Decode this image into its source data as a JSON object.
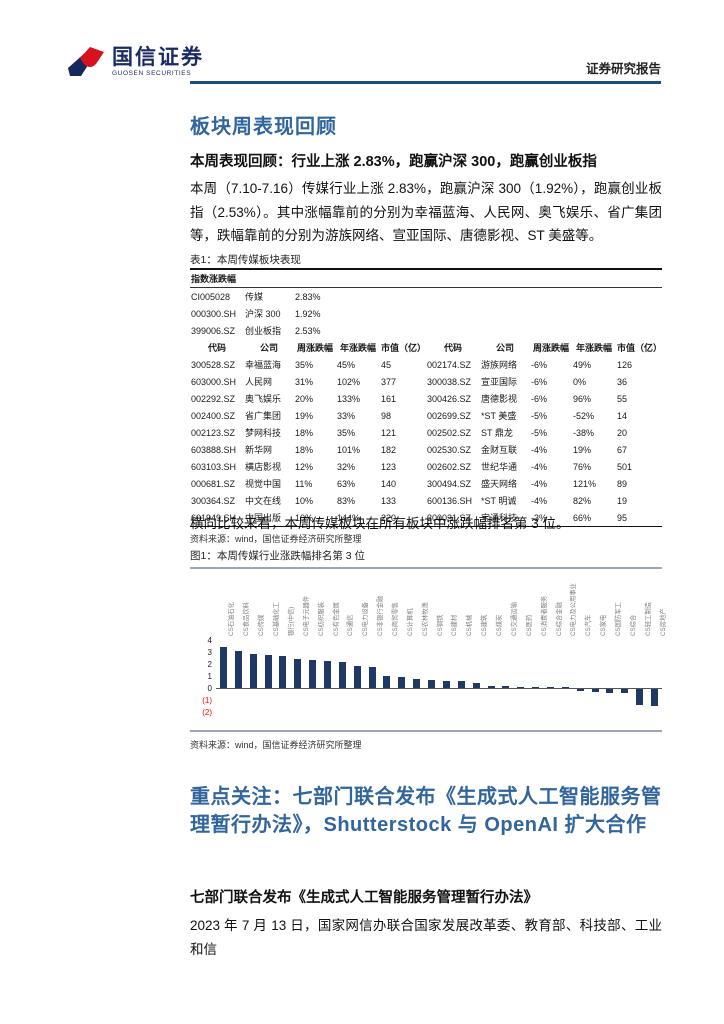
{
  "header": {
    "logo_cn": "国信证券",
    "logo_en": "GUOSEN SECURITIES",
    "report_type": "证券研究报告"
  },
  "colors": {
    "accent_blue": "#31659c",
    "rule_navy": "#1f4e79",
    "bar_navy": "#1f3864",
    "negative_red": "#ff0000",
    "logo_red": "#d8111e",
    "logo_blue": "#16295c"
  },
  "section1": {
    "title": "板块周表现回顾",
    "subtitle": "本周表现回顾：行业上涨 2.83%，跑赢沪深 300，跑赢创业板指",
    "paragraph": "本周（7.10-7.16）传媒行业上涨 2.83%，跑赢沪深 300（1.92%），跑赢创业板指（2.53%）。其中涨幅靠前的分别为幸福蓝海、人民网、奥飞娱乐、省广集团等，跌幅靠前的分别为游族网络、宣亚国际、唐德影视、ST 美盛等。"
  },
  "table": {
    "caption": "表1：本周传媒板块表现",
    "index_section_label": "指数涨跌幅",
    "index_rows": [
      [
        "CI005028",
        "传媒",
        "2.83%"
      ],
      [
        "000300.SH",
        "沪深 300",
        "1.92%"
      ],
      [
        "399006.SZ",
        "创业板指",
        "2.53%"
      ]
    ],
    "columns": [
      "代码",
      "公司",
      "周涨跌幅",
      "年涨跌幅",
      "市值（亿）"
    ],
    "left_rows": [
      [
        "300528.SZ",
        "幸福蓝海",
        "35%",
        "45%",
        "45"
      ],
      [
        "603000.SH",
        "人民网",
        "31%",
        "102%",
        "377"
      ],
      [
        "002292.SZ",
        "奥飞娱乐",
        "20%",
        "133%",
        "161"
      ],
      [
        "002400.SZ",
        "省广集团",
        "19%",
        "33%",
        "98"
      ],
      [
        "002123.SZ",
        "梦网科技",
        "18%",
        "35%",
        "121"
      ],
      [
        "603888.SH",
        "新华网",
        "18%",
        "101%",
        "182"
      ],
      [
        "603103.SH",
        "横店影视",
        "12%",
        "32%",
        "123"
      ],
      [
        "000681.SZ",
        "视觉中国",
        "11%",
        "63%",
        "140"
      ],
      [
        "300364.SZ",
        "中文在线",
        "10%",
        "83%",
        "133"
      ],
      [
        "601949.SH",
        "中国出版",
        "10%",
        "144%",
        "220"
      ]
    ],
    "right_rows": [
      [
        "002174.SZ",
        "游族网络",
        "-6%",
        "49%",
        "126"
      ],
      [
        "300038.SZ",
        "宣亚国际",
        "-6%",
        "0%",
        "36"
      ],
      [
        "300426.SZ",
        "唐德影视",
        "-6%",
        "96%",
        "55"
      ],
      [
        "002699.SZ",
        "*ST 美盛",
        "-5%",
        "-52%",
        "14"
      ],
      [
        "002502.SZ",
        "ST 鼎龙",
        "-5%",
        "-38%",
        "20"
      ],
      [
        "002530.SZ",
        "金财互联",
        "-4%",
        "19%",
        "67"
      ],
      [
        "002602.SZ",
        "世纪华通",
        "-4%",
        "76%",
        "501"
      ],
      [
        "300494.SZ",
        "盛天网络",
        "-4%",
        "121%",
        "89"
      ],
      [
        "600136.SH",
        "*ST 明诚",
        "-4%",
        "82%",
        "19"
      ],
      [
        "300031.SZ",
        "宝通科技",
        "-3%",
        "66%",
        "95"
      ]
    ],
    "source": "资料来源：wind，国信证券经济研究所整理"
  },
  "mid_text": "横向比较来看，本周传媒板块在所有板块中涨跌幅排名第 3 位。",
  "figure": {
    "caption": "图1：本周传媒行业涨跌幅排名第 3 位",
    "source": "资料来源：wind，国信证券经济研究所整理"
  },
  "chart_data": {
    "type": "bar",
    "title": "本周传媒行业涨跌幅排名第 3 位",
    "categories": [
      "CS石油石化",
      "CS食品饮料",
      "CS传媒",
      "CS基础化工",
      "银行(中信)",
      "CS电子元器件",
      "CS纺织服装",
      "CS有色金属",
      "CS通信",
      "CS电力设备",
      "CS非银行金融",
      "CS商贸零售",
      "CS计算机",
      "CS农林牧渔",
      "CS钢铁",
      "CS建材",
      "CS机械",
      "CS建筑",
      "CS煤炭",
      "CS交通运输",
      "CS医药",
      "CS消费者服务",
      "CS综合金融",
      "CS电力及公用事业",
      "CS汽车",
      "CS家电",
      "CS国防军工",
      "CS综合",
      "CS轻工制造",
      "CS房地产"
    ],
    "values": [
      3.4,
      3.05,
      2.85,
      2.75,
      2.7,
      2.4,
      2.3,
      2.25,
      2.2,
      1.85,
      1.75,
      1.0,
      0.9,
      0.75,
      0.7,
      0.6,
      0.55,
      0.4,
      0.2,
      0.15,
      0.12,
      0.1,
      0.08,
      0.05,
      -0.15,
      -0.25,
      -0.3,
      -0.35,
      -1.3,
      -1.45
    ],
    "ylabel": "",
    "xlabel": "",
    "ylim": [
      -2,
      4
    ],
    "ytick_labels": [
      "4",
      "3",
      "2",
      "1",
      "0",
      "(1)",
      "(2)"
    ],
    "grid": false,
    "legend": false,
    "bar_color": "#1f3864"
  },
  "section2": {
    "title": "重点关注：七部门联合发布《生成式人工智能服务管理暂行办法》，Shutterstock 与 OpenAI 扩大合作",
    "subtitle": "七部门联合发布《生成式人工智能服务管理暂行办法》",
    "paragraph": "2023 年 7 月 13 日，国家网信办联合国家发展改革委、教育部、科技部、工业和信"
  }
}
